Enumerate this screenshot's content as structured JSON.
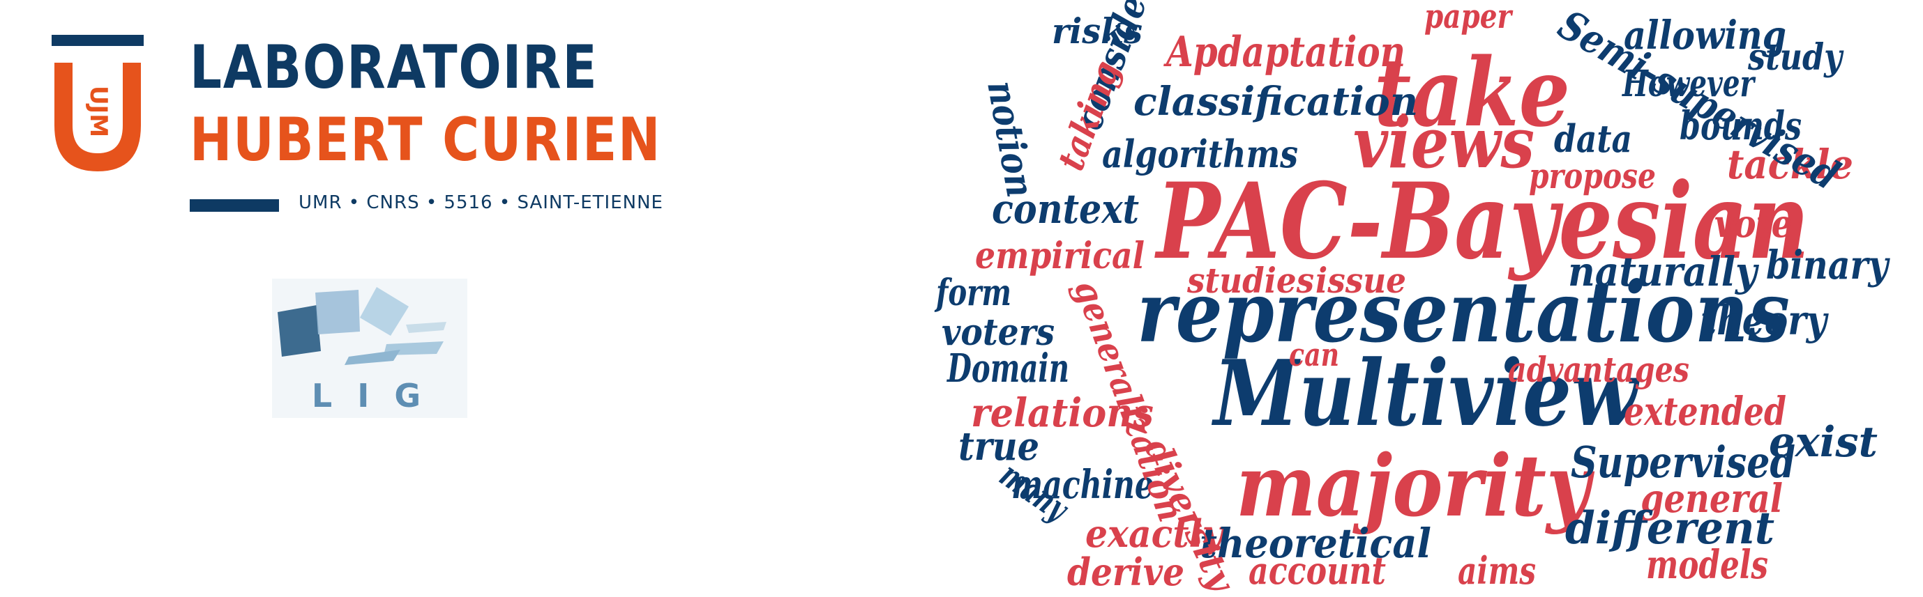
{
  "lab": {
    "monogram": "UJM",
    "line1": "LABORATOIRE",
    "line2": "HUBERT CURIEN",
    "subtitle": "UMR • CNRS • 5516 • SAINT-ETIENNE",
    "colors": {
      "navy": "#0e3a63",
      "orange": "#e6531c"
    }
  },
  "lig": {
    "text": "L I G",
    "colors": {
      "dark": "#3d6b8f",
      "mid": "#7faac8",
      "light": "#b8d4e6"
    }
  },
  "wordcloud": {
    "colors": {
      "navy": "#0d3c6e",
      "red": "#d9414c"
    },
    "words": [
      {
        "text": "PAC-Bayesian",
        "color": "red"
      },
      {
        "text": "representations",
        "color": "navy"
      },
      {
        "text": "Multiview",
        "color": "navy"
      },
      {
        "text": "majority",
        "color": "red"
      },
      {
        "text": "take",
        "color": "red"
      },
      {
        "text": "views",
        "color": "red"
      },
      {
        "text": "Apdaptation",
        "color": "red"
      },
      {
        "text": "classification",
        "color": "navy"
      },
      {
        "text": "algorithms",
        "color": "navy"
      },
      {
        "text": "context",
        "color": "navy"
      },
      {
        "text": "empirical",
        "color": "red"
      },
      {
        "text": "studies",
        "color": "red"
      },
      {
        "text": "issue",
        "color": "red"
      },
      {
        "text": "naturally",
        "color": "navy"
      },
      {
        "text": "binary",
        "color": "navy"
      },
      {
        "text": "theory",
        "color": "navy"
      },
      {
        "text": "voters",
        "color": "navy"
      },
      {
        "text": "form",
        "color": "navy"
      },
      {
        "text": "Domain",
        "color": "navy"
      },
      {
        "text": "can",
        "color": "red"
      },
      {
        "text": "advantages",
        "color": "red"
      },
      {
        "text": "extended",
        "color": "red"
      },
      {
        "text": "relations",
        "color": "red"
      },
      {
        "text": "exist",
        "color": "navy"
      },
      {
        "text": "Supervised",
        "color": "navy"
      },
      {
        "text": "true",
        "color": "navy"
      },
      {
        "text": "machine",
        "color": "navy"
      },
      {
        "text": "general",
        "color": "red"
      },
      {
        "text": "exactly",
        "color": "red"
      },
      {
        "text": "theoretical",
        "color": "navy"
      },
      {
        "text": "different",
        "color": "navy"
      },
      {
        "text": "derive",
        "color": "red"
      },
      {
        "text": "account",
        "color": "red"
      },
      {
        "text": "aims",
        "color": "red"
      },
      {
        "text": "models",
        "color": "red"
      },
      {
        "text": "risks",
        "color": "navy"
      },
      {
        "text": "paper",
        "color": "red"
      },
      {
        "text": "allowing",
        "color": "navy"
      },
      {
        "text": "study",
        "color": "navy"
      },
      {
        "text": "However",
        "color": "navy"
      },
      {
        "text": "bounds",
        "color": "navy"
      },
      {
        "text": "data",
        "color": "navy"
      },
      {
        "text": "propose",
        "color": "red"
      },
      {
        "text": "tackle",
        "color": "red"
      },
      {
        "text": "vote",
        "color": "red"
      },
      {
        "text": "consider",
        "color": "navy"
      },
      {
        "text": "taking",
        "color": "red"
      },
      {
        "text": "notion",
        "color": "navy"
      },
      {
        "text": "Semi-supervised",
        "color": "navy"
      },
      {
        "text": "generalization",
        "color": "red"
      },
      {
        "text": "diversity",
        "color": "red"
      },
      {
        "text": "many",
        "color": "navy"
      }
    ]
  }
}
